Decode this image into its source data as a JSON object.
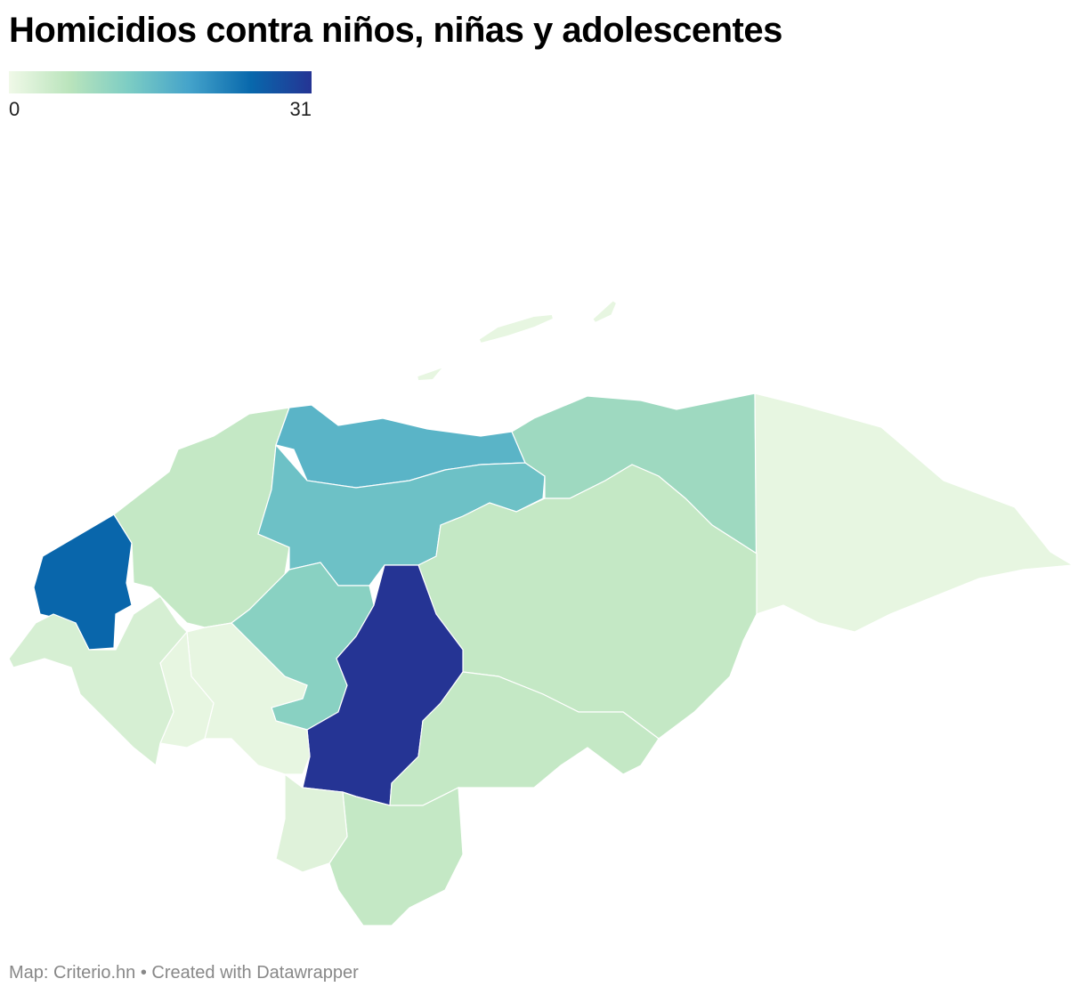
{
  "title": "Homicidios contra niños, niñas y adolescentes",
  "legend": {
    "min": 0,
    "max": 31,
    "colors": [
      "#f0f9e8",
      "#bae4bc",
      "#7bccc4",
      "#43a2ca",
      "#0868ac",
      "#253494"
    ]
  },
  "map": {
    "regions": [
      {
        "value": 25
      },
      {
        "value": 5
      },
      {
        "value": 16
      },
      {
        "value": 14
      },
      {
        "value": 9
      },
      {
        "value": 1
      },
      {
        "value": 5
      },
      {
        "value": 11
      },
      {
        "value": 31
      },
      {
        "value": 5
      },
      {
        "value": 5
      },
      {
        "value": 2
      },
      {
        "value": 1
      },
      {
        "value": 1
      },
      {
        "value": 3
      },
      {
        "value": 1
      }
    ]
  },
  "footer": "Map: Criterio.hn • Created with Datawrapper"
}
